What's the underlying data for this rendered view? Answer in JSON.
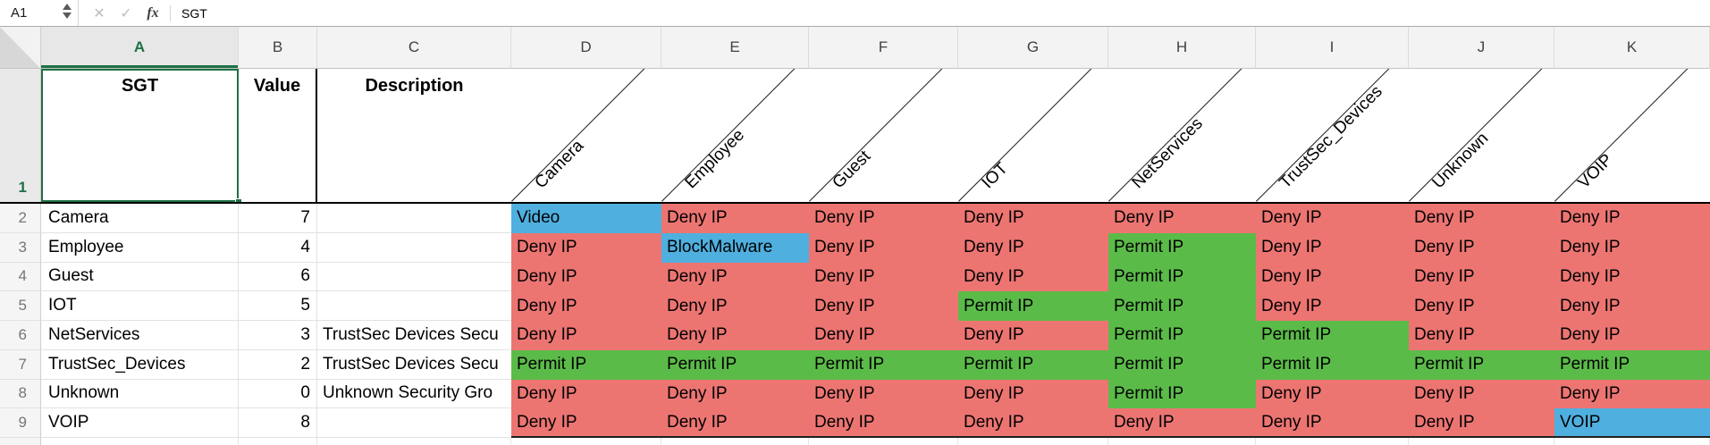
{
  "formula_bar": {
    "name_box": "A1",
    "cancel_glyph": "✕",
    "confirm_glyph": "✓",
    "function_glyph": "fx",
    "formula": "SGT"
  },
  "grid": {
    "selected_cell": "A1",
    "selected_column": "A",
    "selected_row": "1",
    "column_headers": [
      "A",
      "B",
      "C",
      "D",
      "E",
      "F",
      "G",
      "H",
      "I",
      "J",
      "K"
    ],
    "row_headers": [
      "1",
      "2",
      "3",
      "4",
      "5",
      "6",
      "7",
      "8",
      "9"
    ],
    "header_row": {
      "sgt": "SGT",
      "value": "Value",
      "description": "Description"
    },
    "matrix_columns": [
      "Camera",
      "Employee",
      "Guest",
      "IOT",
      "NetServices",
      "TrustSec_Devices",
      "Unknown",
      "VOIP"
    ],
    "rows": [
      {
        "sgt": "Camera",
        "value": "7",
        "description": "",
        "cells": [
          {
            "text": "Video",
            "type": "special"
          },
          {
            "text": "Deny IP",
            "type": "deny"
          },
          {
            "text": "Deny IP",
            "type": "deny"
          },
          {
            "text": "Deny IP",
            "type": "deny"
          },
          {
            "text": "Deny IP",
            "type": "deny"
          },
          {
            "text": "Deny IP",
            "type": "deny"
          },
          {
            "text": "Deny IP",
            "type": "deny"
          },
          {
            "text": "Deny IP",
            "type": "deny"
          }
        ]
      },
      {
        "sgt": "Employee",
        "value": "4",
        "description": "",
        "cells": [
          {
            "text": "Deny IP",
            "type": "deny"
          },
          {
            "text": "BlockMalware",
            "type": "special"
          },
          {
            "text": "Deny IP",
            "type": "deny"
          },
          {
            "text": "Deny IP",
            "type": "deny"
          },
          {
            "text": "Permit IP",
            "type": "permit"
          },
          {
            "text": "Deny IP",
            "type": "deny"
          },
          {
            "text": "Deny IP",
            "type": "deny"
          },
          {
            "text": "Deny IP",
            "type": "deny"
          }
        ]
      },
      {
        "sgt": "Guest",
        "value": "6",
        "description": "",
        "cells": [
          {
            "text": "Deny IP",
            "type": "deny"
          },
          {
            "text": "Deny IP",
            "type": "deny"
          },
          {
            "text": "Deny IP",
            "type": "deny"
          },
          {
            "text": "Deny IP",
            "type": "deny"
          },
          {
            "text": "Permit IP",
            "type": "permit"
          },
          {
            "text": "Deny IP",
            "type": "deny"
          },
          {
            "text": "Deny IP",
            "type": "deny"
          },
          {
            "text": "Deny IP",
            "type": "deny"
          }
        ]
      },
      {
        "sgt": "IOT",
        "value": "5",
        "description": "",
        "cells": [
          {
            "text": "Deny IP",
            "type": "deny"
          },
          {
            "text": "Deny IP",
            "type": "deny"
          },
          {
            "text": "Deny IP",
            "type": "deny"
          },
          {
            "text": "Permit IP",
            "type": "permit"
          },
          {
            "text": "Permit IP",
            "type": "permit"
          },
          {
            "text": "Deny IP",
            "type": "deny"
          },
          {
            "text": "Deny IP",
            "type": "deny"
          },
          {
            "text": "Deny IP",
            "type": "deny"
          }
        ]
      },
      {
        "sgt": "NetServices",
        "value": "3",
        "description": "TrustSec Devices Secu",
        "cells": [
          {
            "text": "Deny IP",
            "type": "deny"
          },
          {
            "text": "Deny IP",
            "type": "deny"
          },
          {
            "text": "Deny IP",
            "type": "deny"
          },
          {
            "text": "Deny IP",
            "type": "deny"
          },
          {
            "text": "Permit IP",
            "type": "permit"
          },
          {
            "text": "Permit IP",
            "type": "permit"
          },
          {
            "text": "Deny IP",
            "type": "deny"
          },
          {
            "text": "Deny IP",
            "type": "deny"
          }
        ]
      },
      {
        "sgt": "TrustSec_Devices",
        "value": "2",
        "description": "TrustSec Devices Secu",
        "cells": [
          {
            "text": "Permit IP",
            "type": "permit"
          },
          {
            "text": "Permit IP",
            "type": "permit"
          },
          {
            "text": "Permit IP",
            "type": "permit"
          },
          {
            "text": "Permit IP",
            "type": "permit"
          },
          {
            "text": "Permit IP",
            "type": "permit"
          },
          {
            "text": "Permit IP",
            "type": "permit"
          },
          {
            "text": "Permit IP",
            "type": "permit"
          },
          {
            "text": "Permit IP",
            "type": "permit"
          }
        ]
      },
      {
        "sgt": "Unknown",
        "value": "0",
        "description": "Unknown Security Gro",
        "cells": [
          {
            "text": "Deny IP",
            "type": "deny"
          },
          {
            "text": "Deny IP",
            "type": "deny"
          },
          {
            "text": "Deny IP",
            "type": "deny"
          },
          {
            "text": "Deny IP",
            "type": "deny"
          },
          {
            "text": "Permit IP",
            "type": "permit"
          },
          {
            "text": "Deny IP",
            "type": "deny"
          },
          {
            "text": "Deny IP",
            "type": "deny"
          },
          {
            "text": "Deny IP",
            "type": "deny"
          }
        ]
      },
      {
        "sgt": "VOIP",
        "value": "8",
        "description": "",
        "cells": [
          {
            "text": "Deny IP",
            "type": "deny"
          },
          {
            "text": "Deny IP",
            "type": "deny"
          },
          {
            "text": "Deny IP",
            "type": "deny"
          },
          {
            "text": "Deny IP",
            "type": "deny"
          },
          {
            "text": "Deny IP",
            "type": "deny"
          },
          {
            "text": "Deny IP",
            "type": "deny"
          },
          {
            "text": "Deny IP",
            "type": "deny"
          },
          {
            "text": "VOIP",
            "type": "special"
          }
        ]
      }
    ]
  },
  "colors": {
    "deny": "#EC7572",
    "permit": "#5BBB49",
    "special": "#4FAFDF",
    "accent_green": "#1E7145"
  }
}
